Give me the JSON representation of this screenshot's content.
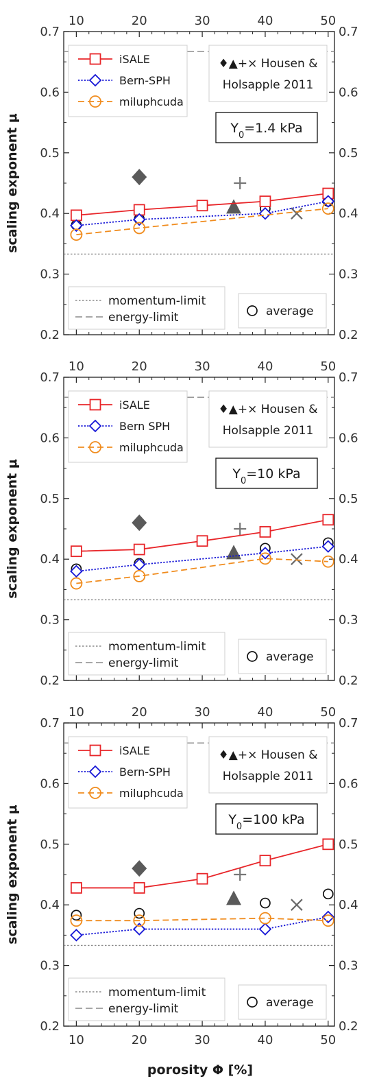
{
  "figure": {
    "xlabel": "porosity Φ [%]",
    "ylabel": "scaling exponent μ",
    "ylabel_panels": [
      "scaling exponent μ",
      "scaling exponent μ",
      "scaling exponent μ"
    ],
    "x_ticks": [
      10,
      20,
      30,
      40,
      50
    ],
    "y_ticks": [
      0.2,
      0.3,
      0.4,
      0.5,
      0.6,
      0.7
    ],
    "y_tick_labels": [
      "0.2",
      "0.3",
      "0.4",
      "0.5",
      "0.6",
      "0.7"
    ]
  },
  "chart_data": [
    {
      "type": "line",
      "panel_label": "Y0=1.4 kPa",
      "label_main": "Y",
      "label_sub": "0",
      "label_rest": "=1.4 kPa",
      "xlim": [
        8,
        51
      ],
      "ylim": [
        0.2,
        0.7
      ],
      "x": [
        10,
        20,
        30,
        40,
        50
      ],
      "series": [
        {
          "name": "iSALE",
          "x": [
            10,
            20,
            30,
            40,
            50
          ],
          "values": [
            0.397,
            0.406,
            0.413,
            0.42,
            0.433
          ],
          "color": "#e8262a",
          "marker": "square",
          "dash": "solid"
        },
        {
          "name": "Bern-SPH",
          "x": [
            10,
            20,
            40,
            50
          ],
          "values": [
            0.38,
            0.39,
            0.4,
            0.42
          ],
          "color": "#1515d6",
          "marker": "diamond",
          "dash": "dotted"
        },
        {
          "name": "miluphcuda",
          "x": [
            10,
            20,
            50
          ],
          "values": [
            0.365,
            0.376,
            0.408
          ],
          "color": "#f08c1e",
          "marker": "circle",
          "dash": "dashed"
        }
      ],
      "average": {
        "x": [
          10,
          20,
          40,
          50
        ],
        "values": [
          0.381,
          0.391,
          0.408,
          0.42
        ]
      },
      "housen_holsapple_2011": {
        "diamond": [
          20,
          0.46
        ],
        "triangle": [
          35,
          0.41
        ],
        "plus": [
          36,
          0.45
        ],
        "cross": [
          45,
          0.4
        ]
      },
      "momentum_limit": 0.333,
      "energy_limit": 0.667,
      "legend_main": [
        "iSALE",
        "Bern-SPH",
        "miluphcuda"
      ],
      "legend_limits": [
        "momentum-limit",
        "energy-limit"
      ],
      "legend_average": "average",
      "legend_hh": [
        "♦▲+× Housen &",
        "Holsapple 2011"
      ]
    },
    {
      "type": "line",
      "panel_label": "Y0=10 kPa",
      "label_main": "Y",
      "label_sub": "0",
      "label_rest": "=10 kPa",
      "xlim": [
        8,
        51
      ],
      "ylim": [
        0.2,
        0.7
      ],
      "x": [
        10,
        20,
        30,
        40,
        50
      ],
      "series": [
        {
          "name": "iSALE",
          "x": [
            10,
            20,
            30,
            40,
            50
          ],
          "values": [
            0.413,
            0.416,
            0.43,
            0.445,
            0.465
          ],
          "color": "#e8262a",
          "marker": "square",
          "dash": "solid"
        },
        {
          "name": "Bern SPH",
          "x": [
            10,
            20,
            40,
            50
          ],
          "values": [
            0.38,
            0.391,
            0.41,
            0.421
          ],
          "color": "#1515d6",
          "marker": "diamond",
          "dash": "dotted"
        },
        {
          "name": "miluphcuda",
          "x": [
            10,
            20,
            40,
            50
          ],
          "values": [
            0.36,
            0.372,
            0.401,
            0.396
          ],
          "color": "#f08c1e",
          "marker": "circle",
          "dash": "dashed"
        }
      ],
      "average": {
        "x": [
          10,
          20,
          40,
          50
        ],
        "values": [
          0.384,
          0.393,
          0.418,
          0.427
        ]
      },
      "housen_holsapple_2011": {
        "diamond": [
          20,
          0.46
        ],
        "triangle": [
          35,
          0.41
        ],
        "plus": [
          36,
          0.45
        ],
        "cross": [
          45,
          0.4
        ]
      },
      "momentum_limit": 0.333,
      "energy_limit": 0.667,
      "legend_main": [
        "iSALE",
        "Bern SPH",
        "miluphcuda"
      ],
      "legend_limits": [
        "momentum-limit",
        "energy-limit"
      ],
      "legend_average": "average",
      "legend_hh": [
        "♦▲+× Housen &",
        "Holsapple 2011"
      ]
    },
    {
      "type": "line",
      "panel_label": "Y0=100 kPa",
      "label_main": "Y",
      "label_sub": "0",
      "label_rest": "=100 kPa",
      "xlim": [
        8,
        51
      ],
      "ylim": [
        0.2,
        0.7
      ],
      "x": [
        10,
        20,
        30,
        40,
        50
      ],
      "series": [
        {
          "name": "iSALE",
          "x": [
            10,
            20,
            30,
            40,
            50
          ],
          "values": [
            0.428,
            0.428,
            0.443,
            0.473,
            0.5
          ],
          "color": "#e8262a",
          "marker": "square",
          "dash": "solid"
        },
        {
          "name": "Bern-SPH",
          "x": [
            10,
            20,
            40,
            50
          ],
          "values": [
            0.35,
            0.36,
            0.36,
            0.38
          ],
          "color": "#1515d6",
          "marker": "diamond",
          "dash": "dotted"
        },
        {
          "name": "miluphcuda",
          "x": [
            10,
            20,
            40,
            50
          ],
          "values": [
            0.374,
            0.374,
            0.378,
            0.374
          ],
          "color": "#f08c1e",
          "marker": "circle",
          "dash": "dashed"
        }
      ],
      "average": {
        "x": [
          10,
          20,
          40,
          50
        ],
        "values": [
          0.383,
          0.386,
          0.403,
          0.418
        ]
      },
      "housen_holsapple_2011": {
        "diamond": [
          20,
          0.46
        ],
        "triangle": [
          35,
          0.41
        ],
        "plus": [
          36,
          0.45
        ],
        "cross": [
          45,
          0.4
        ]
      },
      "momentum_limit": 0.333,
      "energy_limit": 0.667,
      "legend_main": [
        "iSALE",
        "Bern-SPH",
        "miluphcuda"
      ],
      "legend_limits": [
        "momentum-limit",
        "energy-limit"
      ],
      "legend_average": "average",
      "legend_hh": [
        "♦▲+× Housen &",
        "Holsapple 2011"
      ]
    }
  ]
}
